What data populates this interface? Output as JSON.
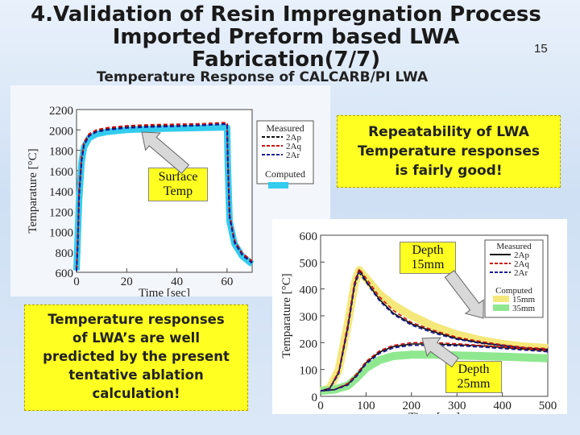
{
  "slide": {
    "title_lines": [
      "4.Validation of Resin Impregnation Process",
      "Imported Preform based LWA",
      "Fabrication(7/7)"
    ],
    "page_number": "15",
    "subtitle": "Temperature Response of CALCARB/PI LWA"
  },
  "callouts": {
    "repeatability": [
      "Repeatability of LWA",
      "Temperature responses",
      "is fairly good!"
    ],
    "prediction": [
      "Temperature responses",
      "of LWA’s are well",
      "predicted by the present",
      "tentative ablation",
      "calculation!"
    ]
  },
  "tags": {
    "surface": [
      "Surface",
      "Temp"
    ],
    "depth15": [
      "Depth",
      "15mm"
    ],
    "depth25": [
      "Depth",
      "25mm"
    ]
  },
  "colors": {
    "measured_2Ap": "#111111",
    "measured_2Aq": "#cc1111",
    "measured_2Ar": "#1a1a99",
    "computed_surface": "#33ccee",
    "computed_15mm": "#f5e87a",
    "computed_35mm": "#8fe88f",
    "callout_fill": "#ffff22"
  },
  "chart_data": [
    {
      "type": "line",
      "xlabel": "Time [sec]",
      "ylabel": "Temparature [°C]",
      "xlim": [
        0,
        70
      ],
      "ylim": [
        600,
        2200
      ],
      "x_ticks": [
        "0",
        "20",
        "40",
        "60"
      ],
      "y_ticks": [
        "600",
        "800",
        "1000",
        "1200",
        "1400",
        "1600",
        "1800",
        "2000",
        "2200"
      ],
      "legend": {
        "measured_title": "Measured",
        "computed_title": "Computed",
        "entries": [
          "2Ap",
          "2Aq",
          "2Ar"
        ],
        "position": "top-right"
      },
      "series": [
        {
          "name": "2Ap",
          "kind": "measured",
          "x": [
            0,
            0.5,
            1,
            2,
            3,
            5,
            8,
            12,
            20,
            30,
            40,
            50,
            58,
            60,
            60.3,
            61,
            63,
            66,
            70
          ],
          "y": [
            620,
            900,
            1350,
            1700,
            1860,
            1950,
            1990,
            2010,
            2030,
            2040,
            2040,
            2050,
            2060,
            2060,
            1700,
            1150,
            900,
            780,
            700
          ]
        },
        {
          "name": "2Aq",
          "kind": "measured",
          "x": [
            0,
            0.5,
            1,
            2,
            3,
            5,
            8,
            12,
            20,
            30,
            40,
            50,
            58,
            60,
            60.3,
            61,
            63,
            66,
            70
          ],
          "y": [
            630,
            950,
            1400,
            1730,
            1880,
            1960,
            2000,
            2020,
            2040,
            2050,
            2055,
            2060,
            2070,
            2070,
            1720,
            1170,
            910,
            790,
            710
          ]
        },
        {
          "name": "2Ar",
          "kind": "measured",
          "x": [
            0,
            0.5,
            1,
            2,
            3,
            5,
            8,
            12,
            20,
            30,
            40,
            50,
            58,
            60,
            60.3,
            61,
            63,
            66,
            70
          ],
          "y": [
            610,
            880,
            1330,
            1690,
            1850,
            1940,
            1980,
            2000,
            2020,
            2030,
            2035,
            2045,
            2055,
            2055,
            1690,
            1140,
            890,
            770,
            690
          ]
        },
        {
          "name": "Computed",
          "kind": "computed",
          "x": [
            0,
            1,
            2,
            3,
            5,
            8,
            12,
            20,
            30,
            40,
            50,
            60,
            60.3,
            61,
            63,
            66,
            70
          ],
          "y": [
            620,
            1300,
            1680,
            1830,
            1920,
            1960,
            1980,
            2000,
            2010,
            2015,
            2020,
            2025,
            1650,
            1100,
            880,
            760,
            680
          ]
        }
      ]
    },
    {
      "type": "line",
      "xlabel": "Time [sec]",
      "ylabel": "Temparature [°C]",
      "xlim": [
        0,
        500
      ],
      "ylim": [
        0,
        600
      ],
      "x_ticks": [
        "0",
        "100",
        "200",
        "300",
        "400",
        "500"
      ],
      "y_ticks": [
        "0",
        "100",
        "200",
        "300",
        "400",
        "500",
        "600"
      ],
      "legend": {
        "measured_title": "Measured",
        "computed_title": "Computed",
        "entries": [
          "2Ap",
          "2Aq",
          "2Ar"
        ],
        "computed_entries": [
          "15mm",
          "35mm"
        ],
        "position": "top-right"
      },
      "series": [
        {
          "name": "2Ap 15mm",
          "kind": "measured",
          "x": [
            0,
            20,
            40,
            60,
            75,
            85,
            100,
            130,
            160,
            200,
            250,
            300,
            350,
            400,
            450,
            500
          ],
          "y": [
            20,
            30,
            90,
            260,
            420,
            470,
            430,
            360,
            310,
            270,
            240,
            215,
            200,
            190,
            180,
            175
          ]
        },
        {
          "name": "2Aq 15mm",
          "kind": "measured",
          "x": [
            0,
            20,
            40,
            60,
            75,
            85,
            100,
            130,
            160,
            200,
            250,
            300,
            350,
            400,
            450,
            500
          ],
          "y": [
            20,
            30,
            95,
            270,
            430,
            475,
            440,
            370,
            320,
            275,
            245,
            220,
            205,
            192,
            182,
            178
          ]
        },
        {
          "name": "2Ar 15mm",
          "kind": "measured",
          "x": [
            0,
            20,
            40,
            60,
            75,
            85,
            100,
            130,
            160,
            200,
            250,
            300,
            350,
            400,
            450,
            500
          ],
          "y": [
            20,
            28,
            85,
            250,
            410,
            460,
            425,
            355,
            305,
            265,
            235,
            212,
            198,
            188,
            178,
            172
          ]
        },
        {
          "name": "2Ap 25mm",
          "kind": "measured",
          "x": [
            0,
            30,
            60,
            80,
            100,
            130,
            160,
            200,
            250,
            300,
            350,
            400,
            450,
            500
          ],
          "y": [
            20,
            25,
            45,
            80,
            125,
            165,
            185,
            195,
            195,
            192,
            188,
            182,
            176,
            170
          ]
        },
        {
          "name": "2Aq 25mm",
          "kind": "measured",
          "x": [
            0,
            30,
            60,
            80,
            100,
            130,
            160,
            200,
            250,
            300,
            350,
            400,
            450,
            500
          ],
          "y": [
            20,
            25,
            48,
            85,
            130,
            170,
            190,
            200,
            200,
            196,
            190,
            184,
            178,
            172
          ]
        },
        {
          "name": "2Ar 25mm",
          "kind": "measured",
          "x": [
            0,
            30,
            60,
            80,
            100,
            130,
            160,
            200,
            250,
            300,
            350,
            400,
            450,
            500
          ],
          "y": [
            20,
            24,
            42,
            76,
            120,
            160,
            180,
            190,
            190,
            188,
            184,
            178,
            172,
            166
          ]
        },
        {
          "name": "15mm",
          "kind": "computed",
          "x": [
            0,
            20,
            40,
            60,
            75,
            85,
            100,
            130,
            160,
            200,
            250,
            300,
            350,
            400,
            450,
            500
          ],
          "y": [
            20,
            30,
            100,
            270,
            420,
            470,
            440,
            380,
            340,
            300,
            260,
            230,
            210,
            195,
            185,
            180
          ]
        },
        {
          "name": "35mm",
          "kind": "computed",
          "x": [
            0,
            30,
            60,
            80,
            100,
            130,
            160,
            200,
            250,
            300,
            350,
            400,
            450,
            500
          ],
          "y": [
            20,
            25,
            40,
            70,
            105,
            135,
            150,
            155,
            155,
            152,
            150,
            148,
            145,
            142
          ]
        }
      ]
    }
  ]
}
